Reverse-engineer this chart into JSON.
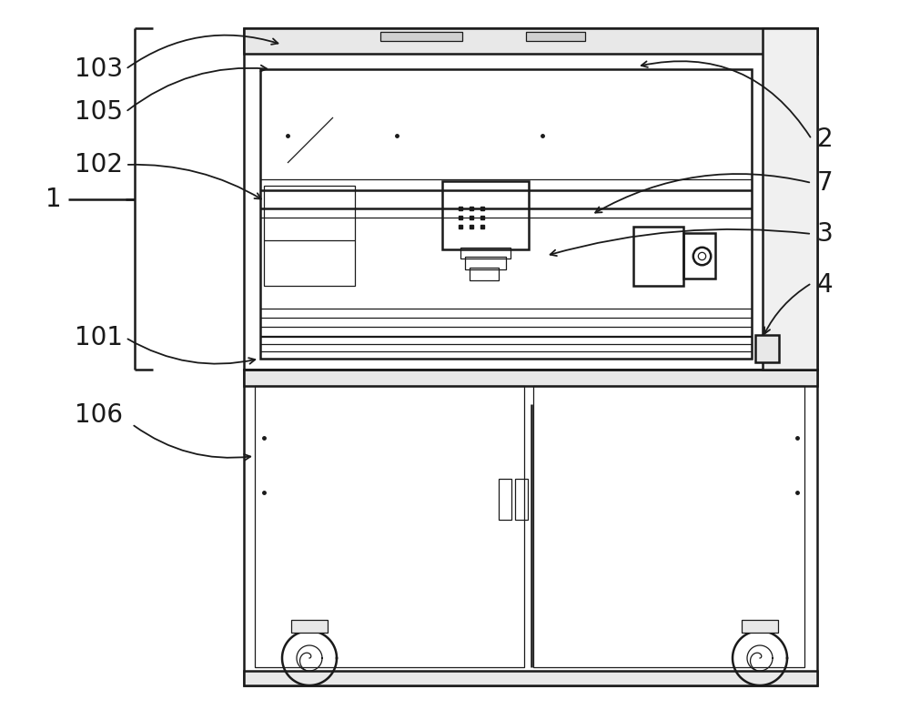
{
  "bg_color": "#ffffff",
  "line_color": "#1a1a1a",
  "lw": 1.8,
  "tlw": 0.9,
  "fs": 20
}
